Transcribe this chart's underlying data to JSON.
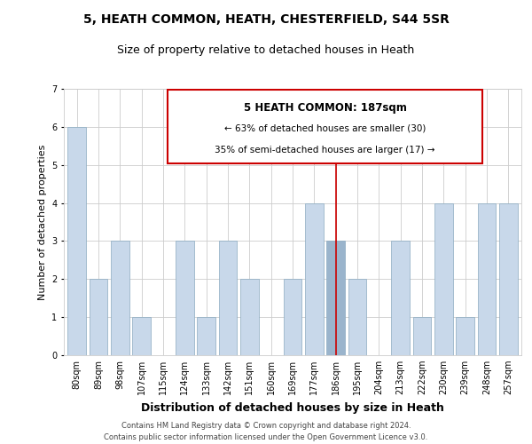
{
  "title": "5, HEATH COMMON, HEATH, CHESTERFIELD, S44 5SR",
  "subtitle": "Size of property relative to detached houses in Heath",
  "xlabel": "Distribution of detached houses by size in Heath",
  "ylabel": "Number of detached properties",
  "categories": [
    "80sqm",
    "89sqm",
    "98sqm",
    "107sqm",
    "115sqm",
    "124sqm",
    "133sqm",
    "142sqm",
    "151sqm",
    "160sqm",
    "169sqm",
    "177sqm",
    "186sqm",
    "195sqm",
    "204sqm",
    "213sqm",
    "222sqm",
    "230sqm",
    "239sqm",
    "248sqm",
    "257sqm"
  ],
  "values": [
    6,
    2,
    3,
    1,
    0,
    3,
    1,
    3,
    2,
    0,
    2,
    4,
    3,
    2,
    0,
    3,
    1,
    4,
    1,
    4,
    4
  ],
  "highlight_index": 12,
  "bar_color_normal": "#c8d8ea",
  "bar_color_highlight": "#9ab4cc",
  "bar_edgecolor": "#8aaac0",
  "ylim": [
    0,
    7
  ],
  "yticks": [
    0,
    1,
    2,
    3,
    4,
    5,
    6,
    7
  ],
  "annotation_title": "5 HEATH COMMON: 187sqm",
  "annotation_line1": "← 63% of detached houses are smaller (30)",
  "annotation_line2": "35% of semi-detached houses are larger (17) →",
  "annotation_box_edgecolor": "#cc0000",
  "vline_color": "#cc0000",
  "footer1": "Contains HM Land Registry data © Crown copyright and database right 2024.",
  "footer2": "Contains public sector information licensed under the Open Government Licence v3.0.",
  "background_color": "#ffffff",
  "grid_color": "#cccccc",
  "title_fontsize": 10,
  "subtitle_fontsize": 9,
  "xlabel_fontsize": 9,
  "ylabel_fontsize": 8,
  "tick_fontsize": 7,
  "annot_title_fontsize": 8.5,
  "annot_text_fontsize": 7.5,
  "footer_fontsize": 6
}
